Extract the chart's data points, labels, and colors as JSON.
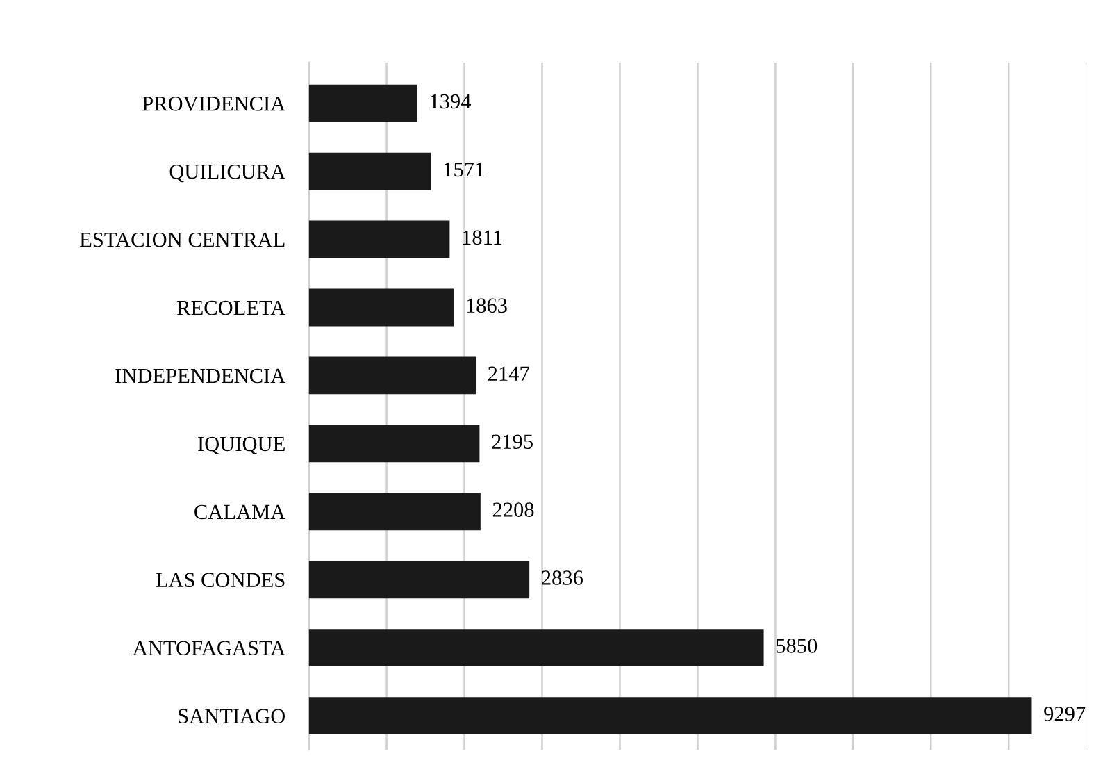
{
  "chart_data": {
    "type": "bar",
    "orientation": "horizontal",
    "categories": [
      "PROVIDENCIA",
      "QUILICURA",
      "ESTACION CENTRAL",
      "RECOLETA",
      "INDEPENDENCIA",
      "IQUIQUE",
      "CALAMA",
      "LAS CONDES",
      "ANTOFAGASTA",
      "SANTIAGO"
    ],
    "values": [
      1394,
      1571,
      1811,
      1863,
      2147,
      2195,
      2208,
      2836,
      5850,
      9297
    ],
    "color": "#1a1a1a",
    "data_labels": true,
    "grid": "x",
    "tick_labels": "y",
    "xlim": [
      0,
      10000
    ],
    "xticks": [
      {
        "value": 0,
        "label": null
      },
      {
        "value": 1000,
        "label": null
      },
      {
        "value": 2000,
        "label": null
      },
      {
        "value": 3000,
        "label": null
      },
      {
        "value": 4000,
        "label": null
      },
      {
        "value": 5000,
        "label": null
      },
      {
        "value": 6000,
        "label": null
      },
      {
        "value": 7000,
        "label": null
      },
      {
        "value": 8000,
        "label": null
      },
      {
        "value": 9000,
        "label": null
      },
      {
        "value": 10000,
        "label": null
      }
    ]
  }
}
